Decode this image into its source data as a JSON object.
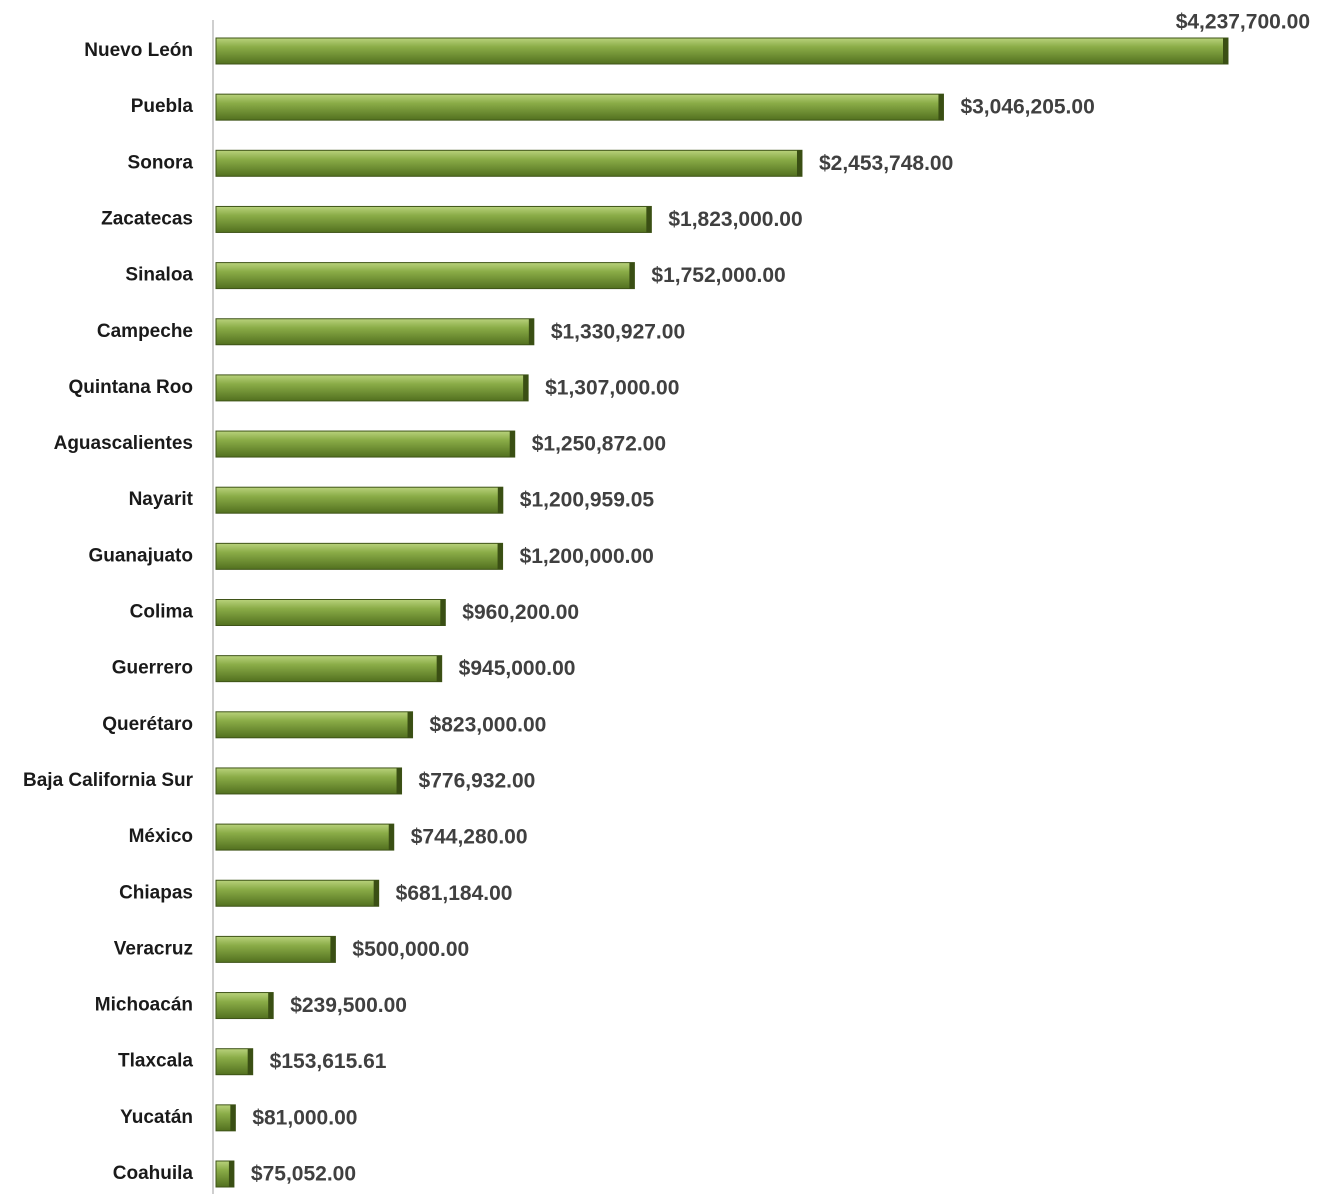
{
  "chart_data": {
    "type": "bar",
    "orientation": "horizontal",
    "categories": [
      "Nuevo León",
      "Puebla",
      "Sonora",
      "Zacatecas",
      "Sinaloa",
      "Campeche",
      "Quintana Roo",
      "Aguascalientes",
      "Nayarit",
      "Guanajuato",
      "Colima",
      "Guerrero",
      "Querétaro",
      "Baja California Sur",
      "México",
      "Chiapas",
      "Veracruz",
      "Michoacán",
      "Tlaxcala",
      "Yucatán",
      "Coahuila"
    ],
    "values": [
      4237700,
      3046205,
      2453748,
      1823000,
      1752000,
      1330927,
      1307000,
      1250872,
      1200959.05,
      1200000,
      960200,
      945000,
      823000,
      776932,
      744280,
      681184,
      500000,
      239500,
      153615.61,
      81000,
      75052
    ],
    "value_labels": [
      "$4,237,700.00",
      "$3,046,205.00",
      "$2,453,748.00",
      "$1,823,000.00",
      "$1,752,000.00",
      "$1,330,927.00",
      "$1,307,000.00",
      "$1,250,872.00",
      "$1,200,959.05",
      "$1,200,000.00",
      "$960,200.00",
      "$945,000.00",
      "$823,000.00",
      "$776,932.00",
      "$744,280.00",
      "$681,184.00",
      "$500,000.00",
      "$239,500.00",
      "$153,615.61",
      "$81,000.00",
      "$75,052.00"
    ],
    "color": "#7a9a3a"
  }
}
